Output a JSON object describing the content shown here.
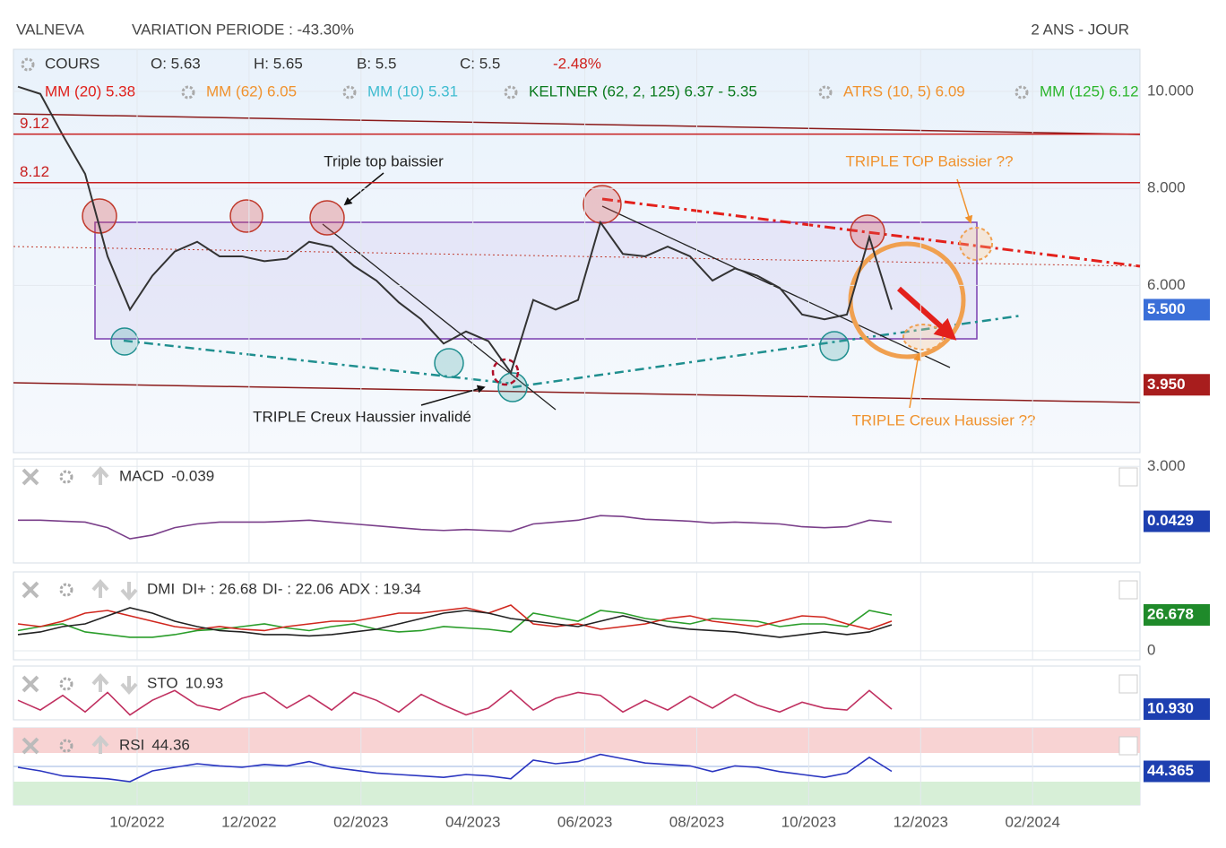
{
  "header": {
    "name": "VALNEVA",
    "variation": "VARIATION PERIODE : -43.30%",
    "period": "2 ANS - JOUR"
  },
  "x_labels": [
    "10/2022",
    "12/2022",
    "02/2023",
    "04/2023",
    "06/2023",
    "08/2023",
    "10/2023",
    "12/2023",
    "02/2024"
  ],
  "chart_data": [
    {
      "type": "line",
      "title": "COURS",
      "quote": [
        "O: 5.63",
        "H: 5.65",
        "B: 5.5",
        "C: 5.5"
      ],
      "change": "-2.48%",
      "indicators": [
        {
          "name": "MM (20) 5.38",
          "color": "#e0201b"
        },
        {
          "name": "MM (62) 6.05",
          "color": "#f0922e"
        },
        {
          "name": "MM (10) 5.31",
          "color": "#3fbcd0"
        },
        {
          "name": "KELTNER (62, 2, 125) 6.37 - 5.35",
          "color": "#0b7a1e"
        },
        {
          "name": "ATRS (10, 5) 6.09",
          "color": "#f0922e"
        },
        {
          "name": "MM (125) 6.12",
          "color": "#2bb52b"
        }
      ],
      "levels": [
        {
          "value": 9.12,
          "label": "9.12"
        },
        {
          "value": 8.12,
          "label": "8.12"
        }
      ],
      "badges": [
        {
          "value": 5.5,
          "label": "5.500",
          "color": "#3a6fd8"
        },
        {
          "value": 3.95,
          "label": "3.950",
          "color": "#a81d1d"
        }
      ],
      "annotations": [
        "Triple top baissier",
        "TRIPLE Creux Haussier invalidé",
        "TRIPLE TOP Baissier ??",
        "TRIPLE Creux Haussier ??"
      ],
      "ylim": [
        2.55,
        10.87
      ],
      "yticks": [
        {
          "value": 6,
          "label": "6.000"
        },
        {
          "value": 8,
          "label": "8.000"
        },
        {
          "value": 10,
          "label": "10.000"
        }
      ],
      "color": "#333333",
      "values": [
        10.1,
        9.95,
        9.1,
        8.3,
        6.6,
        5.5,
        6.2,
        6.7,
        6.9,
        6.6,
        6.6,
        6.5,
        6.55,
        6.9,
        6.8,
        6.4,
        6.1,
        5.65,
        5.3,
        4.8,
        5.05,
        4.85,
        4.2,
        5.7,
        5.5,
        5.7,
        7.3,
        6.65,
        6.6,
        6.8,
        6.6,
        6.1,
        6.35,
        6.2,
        5.95,
        5.4,
        5.3,
        5.4,
        7.0,
        5.5
      ]
    },
    {
      "type": "line",
      "title": "MACD",
      "legend_value": "-0.039",
      "ylim": [
        -2.2,
        3.4
      ],
      "yticks": [
        {
          "value": 3,
          "label": "3.000"
        }
      ],
      "badges": [
        {
          "value": 0.0429,
          "label": "0.0429",
          "color": "#1d3fb0"
        }
      ],
      "series": [
        {
          "color": "#7a3f8a",
          "values": [
            0.1,
            0.1,
            0.05,
            0.0,
            -0.3,
            -0.9,
            -0.7,
            -0.3,
            -0.1,
            0.0,
            0.0,
            0.0,
            0.05,
            0.1,
            0.0,
            -0.1,
            -0.2,
            -0.3,
            -0.4,
            -0.45,
            -0.4,
            -0.45,
            -0.5,
            -0.1,
            0.0,
            0.1,
            0.35,
            0.3,
            0.15,
            0.1,
            0.05,
            -0.05,
            0.0,
            -0.05,
            -0.1,
            -0.25,
            -0.3,
            -0.25,
            0.1,
            0.0
          ]
        }
      ]
    },
    {
      "type": "line",
      "title": "DMI",
      "ylim": [
        -6.7,
        58.7
      ],
      "yticks": [
        0
      ],
      "badges": [
        {
          "value": 26.678,
          "label": "26.678",
          "color": "#1f8a2a"
        }
      ],
      "series": [
        {
          "name": "DI+ : 26.68",
          "color": "#2a9d2a",
          "values": [
            15,
            18,
            20,
            14,
            12,
            10,
            10,
            12,
            15,
            16,
            18,
            20,
            17,
            15,
            18,
            20,
            16,
            14,
            15,
            18,
            17,
            16,
            14,
            28,
            25,
            22,
            30,
            28,
            24,
            22,
            20,
            24,
            23,
            22,
            18,
            20,
            20,
            18,
            30,
            26.68
          ]
        },
        {
          "name": "DI- : 22.06",
          "color": "#d0261d",
          "values": [
            20,
            18,
            22,
            28,
            30,
            26,
            22,
            18,
            16,
            18,
            16,
            15,
            18,
            20,
            22,
            22,
            25,
            28,
            28,
            30,
            32,
            28,
            34,
            20,
            18,
            20,
            16,
            18,
            20,
            24,
            26,
            22,
            20,
            18,
            22,
            26,
            25,
            20,
            16,
            22.06
          ]
        },
        {
          "name": "ADX : 19.34",
          "color": "#222222",
          "values": [
            12,
            14,
            18,
            20,
            26,
            32,
            28,
            22,
            18,
            15,
            14,
            12,
            12,
            11,
            12,
            14,
            16,
            20,
            24,
            28,
            30,
            28,
            24,
            22,
            20,
            18,
            22,
            26,
            22,
            18,
            16,
            15,
            14,
            12,
            10,
            12,
            14,
            12,
            14,
            19.34
          ]
        }
      ]
    },
    {
      "type": "line",
      "title": "STO",
      "legend_value": "10.93",
      "ylim": [
        0,
        55
      ],
      "yticks": [],
      "badges": [
        {
          "value": 10.93,
          "label": "10.930",
          "color": "#1d3fb0"
        }
      ],
      "series": [
        {
          "color": "#c03060",
          "values": [
            20,
            10,
            25,
            8,
            28,
            5,
            20,
            30,
            15,
            10,
            22,
            28,
            12,
            25,
            10,
            28,
            20,
            8,
            26,
            15,
            5,
            12,
            30,
            10,
            22,
            28,
            25,
            8,
            20,
            10,
            24,
            12,
            26,
            15,
            8,
            18,
            12,
            10,
            30,
            10.93
          ]
        }
      ]
    },
    {
      "type": "line",
      "title": "RSI",
      "legend_value": "44.36",
      "ylim": [
        -2.5,
        105
      ],
      "yticks": [],
      "badges": [
        {
          "value": 44.365,
          "label": "44.365",
          "color": "#1d3fb0"
        }
      ],
      "series": [
        {
          "color": "#2a35c0",
          "values": [
            50,
            45,
            38,
            36,
            34,
            30,
            45,
            50,
            55,
            52,
            50,
            54,
            52,
            58,
            50,
            46,
            42,
            40,
            38,
            36,
            40,
            38,
            34,
            60,
            55,
            58,
            68,
            62,
            56,
            54,
            52,
            44,
            52,
            50,
            44,
            40,
            36,
            42,
            64,
            44.365
          ]
        }
      ]
    }
  ]
}
